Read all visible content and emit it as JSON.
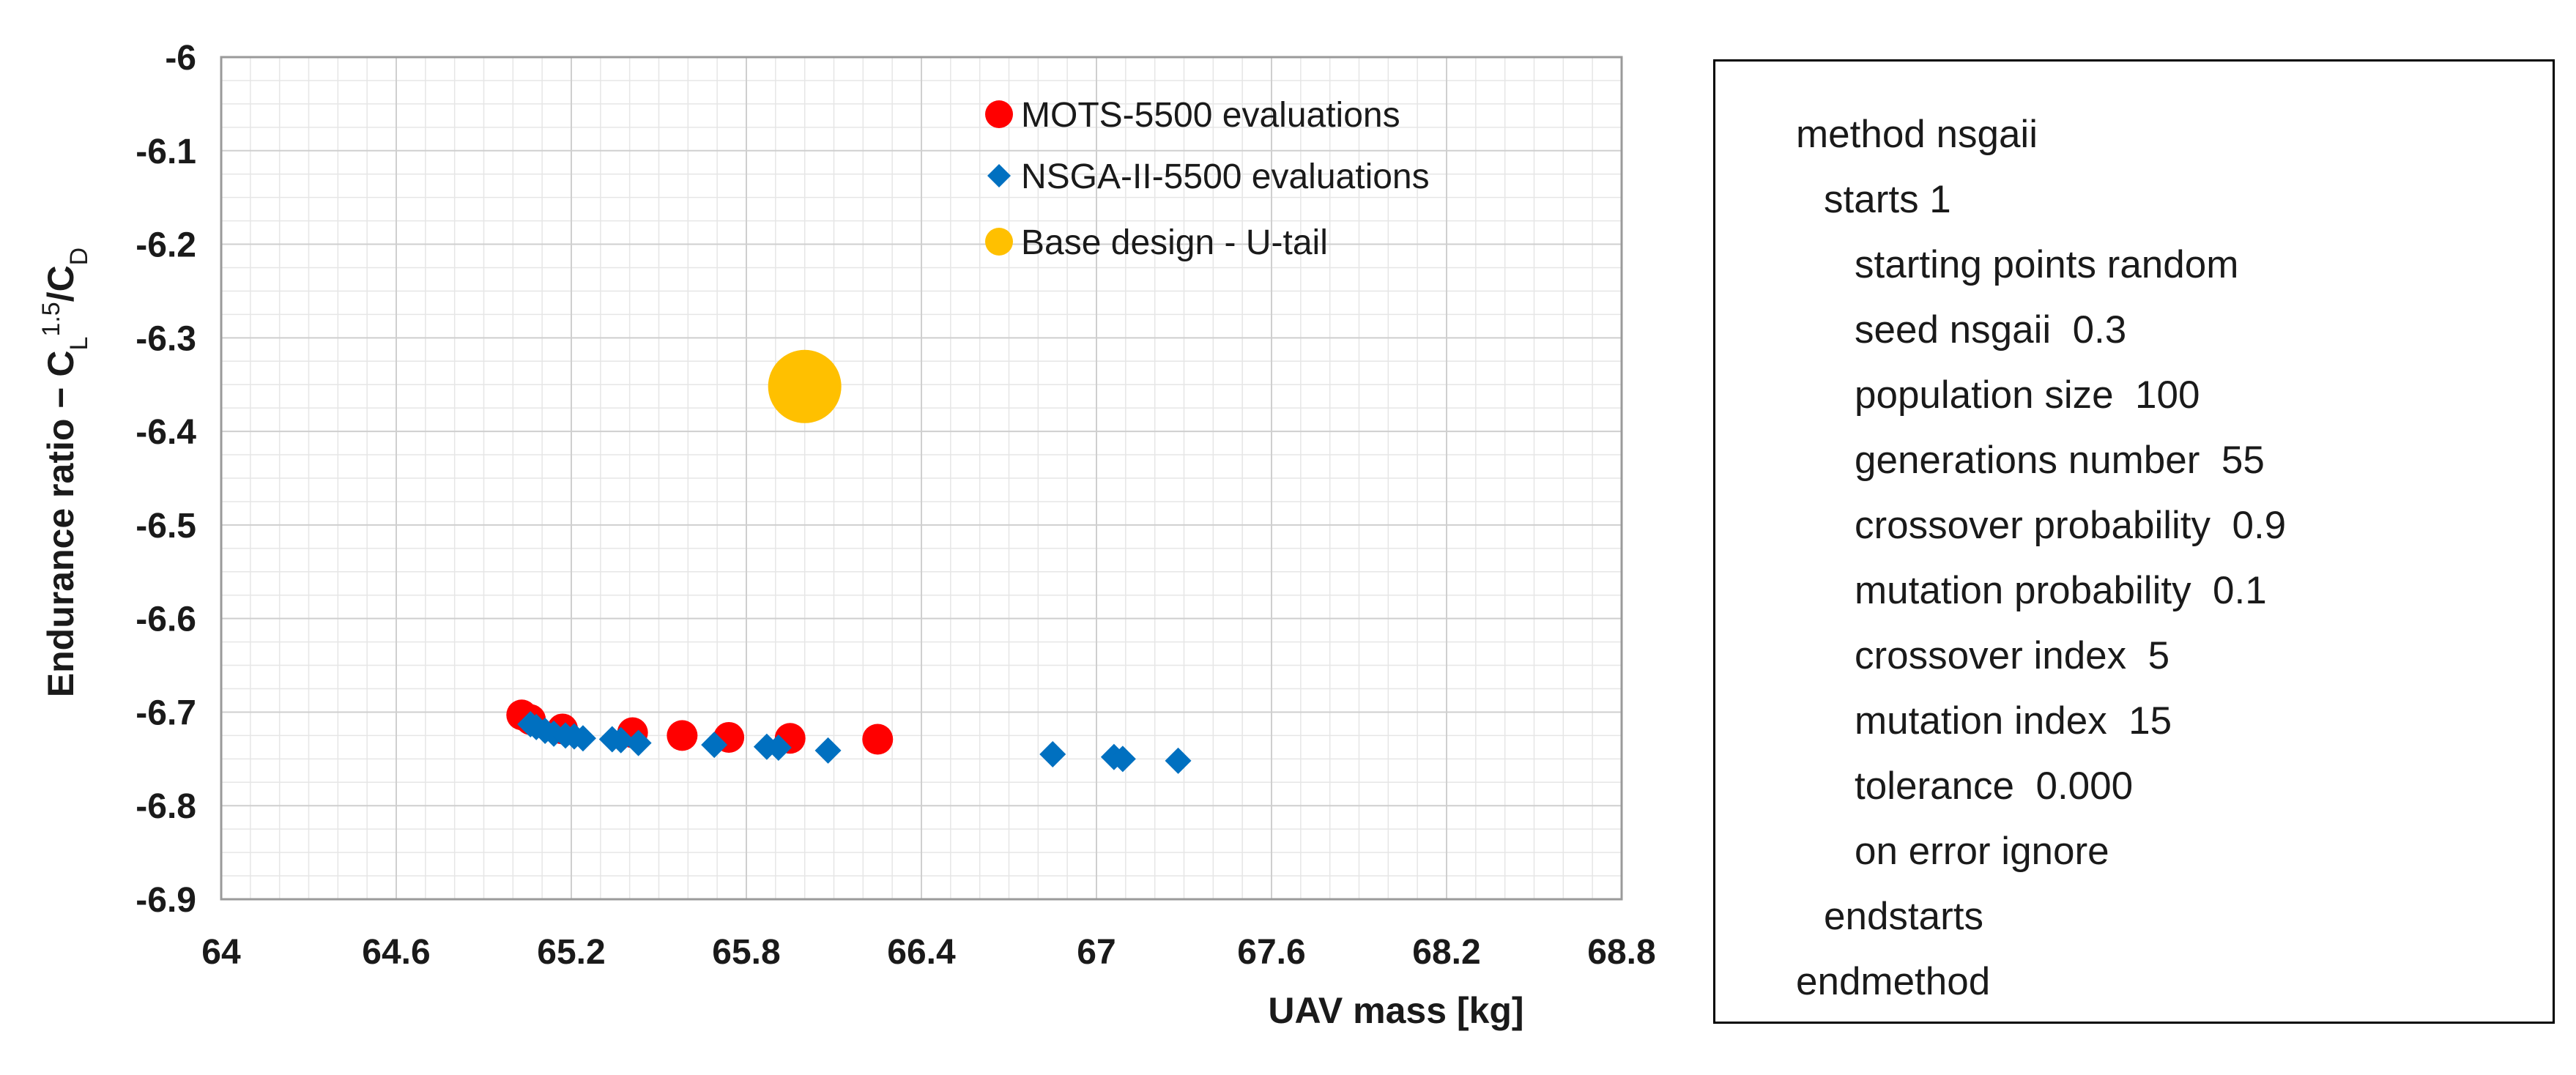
{
  "chart_data": {
    "type": "scatter",
    "title": "",
    "xlabel": "UAV mass [kg]",
    "ylabel": {
      "prefix": "Endurance ratio − C",
      "sub1": "L",
      "sup": "1.5",
      "slash": "/C",
      "sub2": "D"
    },
    "xlim": [
      64,
      68.8
    ],
    "ylim": [
      -6.9,
      -6
    ],
    "x_ticks": [
      64,
      64.6,
      65.2,
      65.8,
      66.4,
      67,
      67.6,
      68.2,
      68.8
    ],
    "x_tick_labels": [
      "64",
      "64.6",
      "65.2",
      "65.8",
      "66.4",
      "67",
      "67.6",
      "68.2",
      "68.8"
    ],
    "y_ticks": [
      -6,
      -6.1,
      -6.2,
      -6.3,
      -6.4,
      -6.5,
      -6.6,
      -6.7,
      -6.8,
      -6.9
    ],
    "y_tick_labels": [
      "-6",
      "-6.1",
      "-6.2",
      "-6.3",
      "-6.4",
      "-6.5",
      "-6.6",
      "-6.7",
      "-6.8",
      "-6.9"
    ],
    "grid": true,
    "legend_position": "top-center",
    "series": [
      {
        "name": "MOTS-5500 evaluations",
        "marker": "circle",
        "color": "#ff0000",
        "points": [
          [
            65.03,
            -6.703
          ],
          [
            65.06,
            -6.708
          ],
          [
            65.17,
            -6.718
          ],
          [
            65.41,
            -6.722
          ],
          [
            65.58,
            -6.725
          ],
          [
            65.74,
            -6.727
          ],
          [
            65.95,
            -6.728
          ],
          [
            66.25,
            -6.729
          ]
        ]
      },
      {
        "name": "NSGA-II-5500 evaluations",
        "marker": "diamond",
        "color": "#0070c0",
        "points": [
          [
            65.06,
            -6.713
          ],
          [
            65.08,
            -6.716
          ],
          [
            65.11,
            -6.72
          ],
          [
            65.14,
            -6.723
          ],
          [
            65.18,
            -6.725
          ],
          [
            65.21,
            -6.726
          ],
          [
            65.24,
            -6.728
          ],
          [
            65.34,
            -6.729
          ],
          [
            65.37,
            -6.73
          ],
          [
            65.43,
            -6.733
          ],
          [
            65.69,
            -6.735
          ],
          [
            65.87,
            -6.737
          ],
          [
            65.91,
            -6.738
          ],
          [
            66.08,
            -6.741
          ],
          [
            66.85,
            -6.745
          ],
          [
            67.06,
            -6.748
          ],
          [
            67.09,
            -6.75
          ],
          [
            67.28,
            -6.752
          ]
        ]
      },
      {
        "name": "Base design - U-tail",
        "marker": "circle-large",
        "color": "#ffc000",
        "points": [
          [
            66.0,
            -6.352
          ]
        ]
      }
    ]
  },
  "code_block": {
    "lines": [
      {
        "text": "method nsgaii",
        "indent": 0
      },
      {
        "text": "starts 1",
        "indent": 1
      },
      {
        "text": "starting points random",
        "indent": 2
      },
      {
        "text": "seed nsgaii  0.3",
        "indent": 2
      },
      {
        "text": "population size  100",
        "indent": 2
      },
      {
        "text": "generations number  55",
        "indent": 2
      },
      {
        "text": "crossover probability  0.9",
        "indent": 2
      },
      {
        "text": "mutation probability  0.1",
        "indent": 2
      },
      {
        "text": "crossover index  5",
        "indent": 2
      },
      {
        "text": "mutation index  15",
        "indent": 2
      },
      {
        "text": "tolerance  0.000",
        "indent": 2
      },
      {
        "text": "on error ignore",
        "indent": 2
      },
      {
        "text": "endstarts",
        "indent": 1
      },
      {
        "text": "endmethod",
        "indent": 0
      }
    ]
  }
}
